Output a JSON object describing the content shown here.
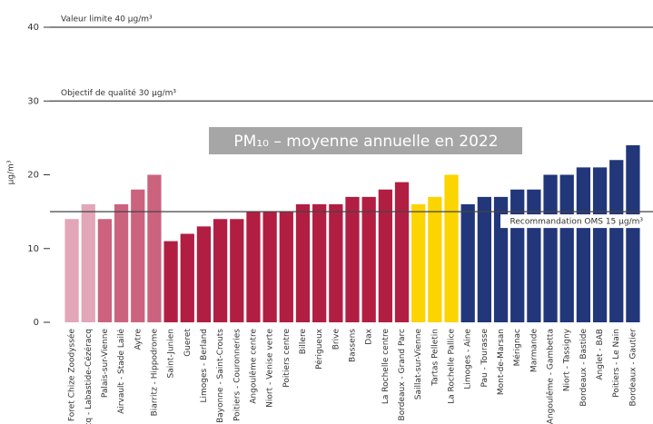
{
  "chart_data": {
    "type": "bar",
    "title": "PM₁₀ – moyenne annuelle en 2022",
    "y_label": "µg/m³",
    "categories": [
      "Foret Chize Zoodyssée",
      "cq - Labastide-Cézéracq",
      "Palais-sur-Vienne",
      "Airvault - Stade Lailé",
      "Aytre",
      "Biarritz - Hippodrome",
      "Saint-Junien",
      "Gueret",
      "Limoges - Berland",
      "Bayonne - Saint-Crouts",
      "Poitiers - Couronneries",
      "Angoulême centre",
      "Niort - Venise verte",
      "Poitiers centre",
      "Billere",
      "Périgueux",
      "Brive",
      "Bassens",
      "Dax",
      "La Rochelle centre",
      "Bordeaux - Grand Parc",
      "Saillat-sur-Vienne",
      "Tartas Pelletin",
      "La Rochelle Pallice",
      "Limoges - Aine",
      "Pau - Tourasse",
      "Mont-de-Marsan",
      "Mérignac",
      "Marmande",
      "Angoulême - Gambetta",
      "Niort - Tassigny",
      "Bordeaux - Bastide",
      "Anglet - BAB",
      "Poitiers - Le Nain",
      "Bordeaux - Gautier"
    ],
    "values": [
      14,
      16,
      14,
      16,
      18,
      20,
      11,
      12,
      13,
      14,
      14,
      15,
      15,
      15,
      16,
      16,
      16,
      17,
      17,
      18,
      19,
      16,
      17,
      20,
      16,
      17,
      17,
      18,
      18,
      20,
      20,
      21,
      21,
      22,
      24
    ],
    "colors": [
      "#e2a6b8",
      "#e2a6b8",
      "#cb637f",
      "#cb637f",
      "#cb637f",
      "#cb637f",
      "#b21e42",
      "#b21e42",
      "#b21e42",
      "#b21e42",
      "#b21e42",
      "#b21e42",
      "#b21e42",
      "#b21e42",
      "#b21e42",
      "#b21e42",
      "#b21e42",
      "#b21e42",
      "#b21e42",
      "#b21e42",
      "#b21e42",
      "#fcd400",
      "#fcd400",
      "#fcd400",
      "#22367a",
      "#22367a",
      "#22367a",
      "#22367a",
      "#22367a",
      "#22367a",
      "#22367a",
      "#22367a",
      "#22367a",
      "#22367a",
      "#22367a"
    ],
    "ylim": [
      0,
      40
    ],
    "yticks": [
      0,
      10,
      20,
      30,
      40
    ],
    "annotations": [
      {
        "value": 40,
        "label": "Valeur limite 40 µg/m³"
      },
      {
        "value": 30,
        "label": "Objectif de qualité 30 µg/m³"
      },
      {
        "value": 15,
        "label": "Recommandation OMS 15 µg/m³"
      }
    ]
  }
}
